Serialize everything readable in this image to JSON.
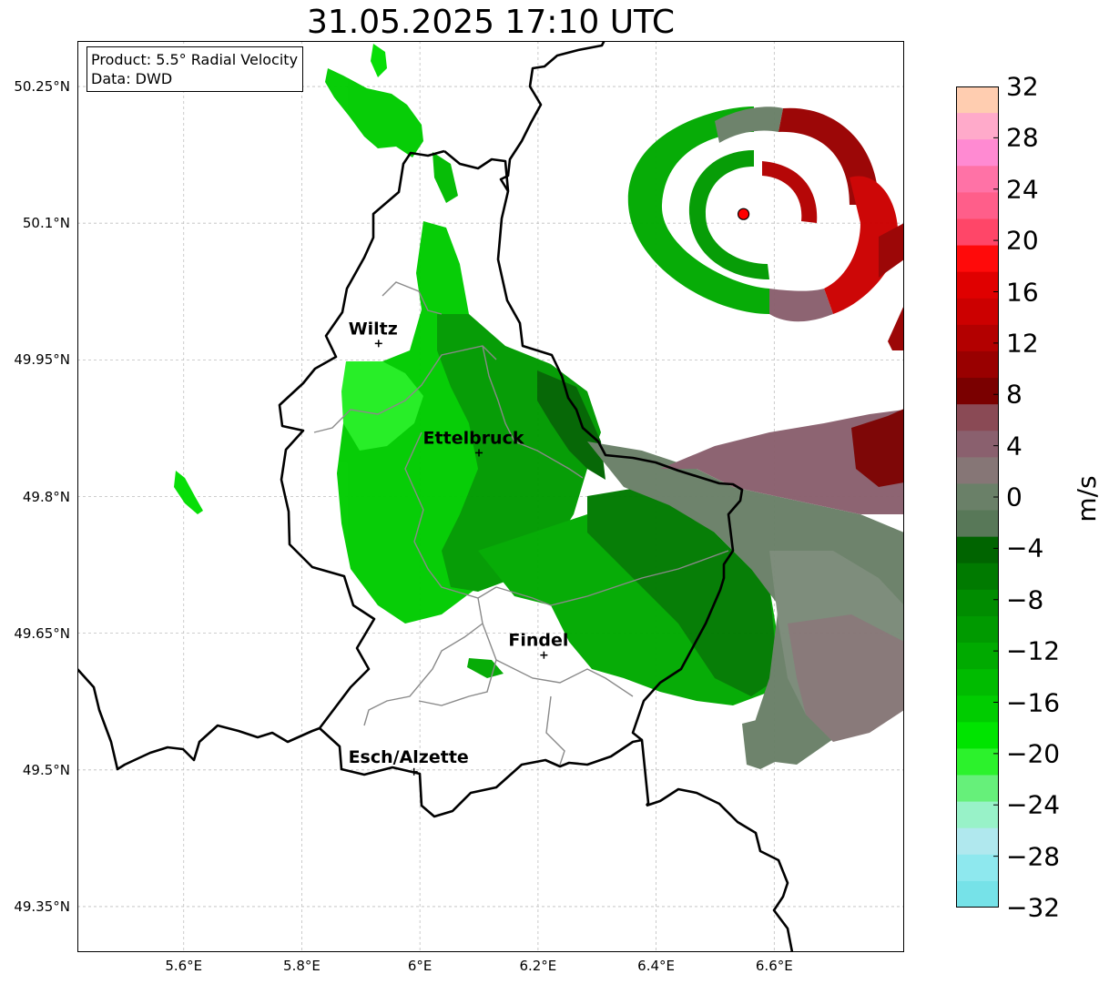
{
  "title": "31.05.2025 17:10 UTC",
  "info": {
    "product": "Product: 5.5° Radial Velocity",
    "source": "Data: DWD"
  },
  "axes": {
    "lat_ticks": [
      {
        "value": 50.25,
        "label": "50.25°N"
      },
      {
        "value": 50.1,
        "label": "50.1°N"
      },
      {
        "value": 49.95,
        "label": "49.95°N"
      },
      {
        "value": 49.8,
        "label": "49.8°N"
      },
      {
        "value": 49.65,
        "label": "49.65°N"
      },
      {
        "value": 49.5,
        "label": "49.5°N"
      },
      {
        "value": 49.35,
        "label": "49.35°N"
      }
    ],
    "lon_ticks": [
      {
        "value": 5.6,
        "label": "5.6°E"
      },
      {
        "value": 5.8,
        "label": "5.8°E"
      },
      {
        "value": 6.0,
        "label": "6°E"
      },
      {
        "value": 6.2,
        "label": "6.2°E"
      },
      {
        "value": 6.4,
        "label": "6.4°E"
      },
      {
        "value": 6.6,
        "label": "6.6°E"
      }
    ],
    "extent": {
      "lon_min": 5.42,
      "lon_max": 6.82,
      "lat_min": 49.3,
      "lat_max": 50.3
    }
  },
  "cities": [
    {
      "name": "Wiltz",
      "lon": 5.93,
      "lat": 49.968
    },
    {
      "name": "Ettelbruck",
      "lon": 6.1,
      "lat": 49.848
    },
    {
      "name": "Findel",
      "lon": 6.21,
      "lat": 49.626
    },
    {
      "name": "Esch/Alzette",
      "lon": 5.99,
      "lat": 49.498
    }
  ],
  "radar_site": {
    "lon": 6.548,
    "lat": 50.11
  },
  "colorbar": {
    "unit": "m/s",
    "min": -32,
    "max": 32,
    "tick_labels": [
      "32",
      "28",
      "24",
      "20",
      "16",
      "12",
      "8",
      "4",
      "0",
      "−4",
      "−8",
      "−12",
      "−16",
      "−20",
      "−24",
      "−28",
      "−32"
    ],
    "tick_values": [
      32,
      28,
      24,
      20,
      16,
      12,
      8,
      4,
      0,
      -4,
      -8,
      -12,
      -16,
      -20,
      -24,
      -28,
      -32
    ],
    "colors_top_to_bottom": [
      "#ffcdb0",
      "#ffaaca",
      "#ff8ad2",
      "#ff72a6",
      "#ff5e8a",
      "#ff4668",
      "#ff0a0a",
      "#e00000",
      "#cc0000",
      "#b30000",
      "#990000",
      "#7a0000",
      "#8a4a55",
      "#8a606e",
      "#867676",
      "#6a8068",
      "#587858",
      "#006400",
      "#007a00",
      "#008c00",
      "#009a00",
      "#00aa00",
      "#00bb00",
      "#00cc00",
      "#00e400",
      "#2cf22c",
      "#66f07a",
      "#98f2c8",
      "#b0e8ee",
      "#8ee8ee",
      "#76e2e8"
    ]
  }
}
